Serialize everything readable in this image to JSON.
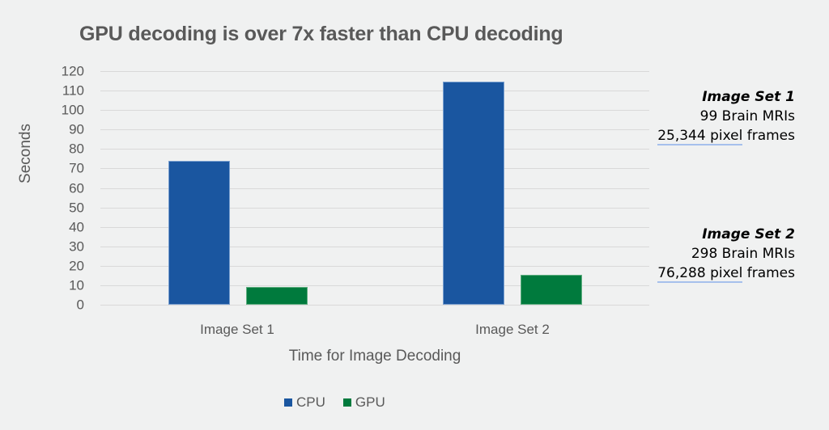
{
  "chart_data": {
    "type": "bar",
    "title": "GPU decoding is over 7x faster than CPU decoding",
    "xlabel": "Time for Image Decoding",
    "ylabel": "Seconds",
    "categories": [
      "Image Set 1",
      "Image Set 2"
    ],
    "series": [
      {
        "name": "CPU",
        "color": "#1a56a0",
        "values": [
          74,
          114.5
        ]
      },
      {
        "name": "GPU",
        "color": "#007a3d",
        "values": [
          9,
          15.3
        ]
      }
    ],
    "ylim": [
      0,
      120
    ],
    "yticks": [
      "0",
      "10",
      "20",
      "30",
      "40",
      "50",
      "60",
      "70",
      "80",
      "90",
      "100",
      "110",
      "120"
    ],
    "grid": true,
    "legend_position": "bottom",
    "annotations": [
      {
        "heading": "Image Set 1",
        "line1": "99 Brain MRIs",
        "frames_number": "25,344 pixel",
        "frames_suffix": " frames"
      },
      {
        "heading": "Image Set 2",
        "line1": "298 Brain MRIs",
        "frames_number": "76,288 pixel",
        "frames_suffix": " frames"
      }
    ]
  },
  "legend": {
    "cpu_label": "CPU",
    "gpu_label": "GPU"
  }
}
